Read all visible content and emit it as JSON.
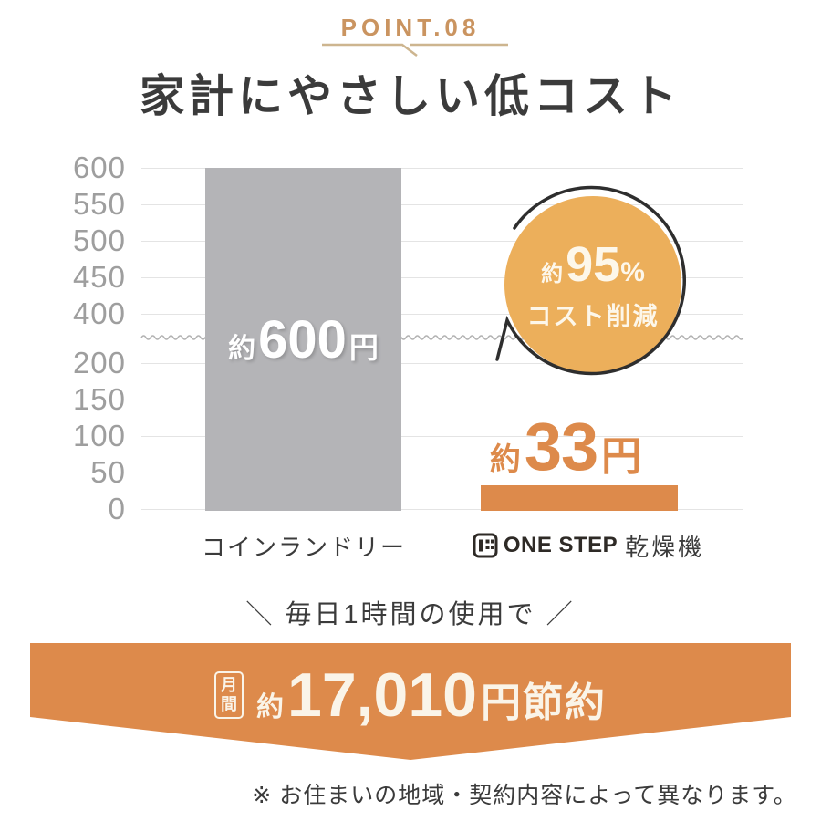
{
  "point_label": "POINT.08",
  "title": "家計にやさしい低コスト",
  "chart_data": {
    "type": "bar",
    "title": "家計にやさしい低コスト",
    "categories": [
      "コインランドリー",
      "ONE STEP 乾燥機"
    ],
    "values": [
      600,
      33
    ],
    "unit": "円",
    "y_ticks": [
      600,
      550,
      500,
      450,
      400,
      200,
      150,
      100,
      50,
      0
    ],
    "ylim": [
      0,
      600
    ],
    "axis_break": {
      "between": [
        200,
        400
      ]
    },
    "grid": true,
    "bar_colors": [
      "#b4b4b7",
      "#dd8a4b"
    ],
    "bar_value_labels": [
      {
        "prefix": "約",
        "value": "600",
        "unit": "円"
      },
      {
        "prefix": "約",
        "value": "33",
        "unit": "円"
      }
    ],
    "callout": {
      "prefix": "約",
      "value": "95",
      "unit": "%",
      "caption": "コスト削減"
    }
  },
  "x_labels": {
    "left": "コインランドリー",
    "right_brand": "ONE STEP",
    "right_suffix": "乾燥機"
  },
  "icons": {
    "brand_logo": "one-step-dryer-door-icon"
  },
  "usage_note": {
    "left_slash": "＼",
    "text": " 毎日1時間の使用で ",
    "right_slash": "／"
  },
  "banner": {
    "period_chars": [
      "月",
      "間"
    ],
    "prefix": "約",
    "amount": "17,010",
    "suffix": "円節約"
  },
  "footnote": "※ お住まいの地域・契約内容によって異なります。",
  "colors": {
    "accent_orange": "#dd8a4b",
    "badge_orange": "#ecaf5b",
    "bar_gray": "#b4b4b7",
    "point_tan": "#ca9460",
    "line_tan": "#cdb58f",
    "cream_text": "#faf4e8",
    "dark_text": "#3b3b3b",
    "tick_gray": "#9e9e9e"
  }
}
